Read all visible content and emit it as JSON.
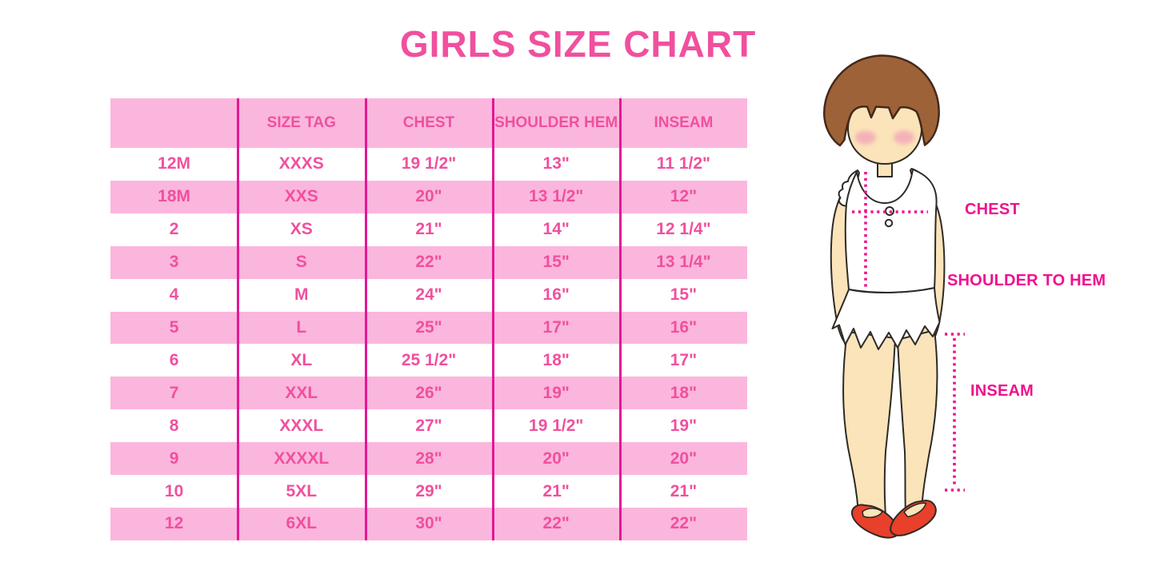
{
  "page": {
    "title": "GIRLS SIZE CHART"
  },
  "colors": {
    "accent_pink": "#F0509E",
    "row_pink": "#FBB6DD",
    "divider_magenta": "#E31795",
    "label_magenta": "#F0108E",
    "hair_brown": "#9E6238",
    "skin": "#FBE4B9",
    "blush": "#F2A6B8",
    "shoe_red": "#E8402A"
  },
  "chart_data": {
    "type": "table",
    "title": "GIRLS SIZE CHART",
    "columns": [
      "",
      "SIZE TAG",
      "CHEST",
      "SHOULDER HEM",
      "INSEAM"
    ],
    "rows": [
      [
        "12M",
        "XXXS",
        "19 1/2\"",
        "13\"",
        "11 1/2\""
      ],
      [
        "18M",
        "XXS",
        "20\"",
        "13 1/2\"",
        "12\""
      ],
      [
        "2",
        "XS",
        "21\"",
        "14\"",
        "12 1/4\""
      ],
      [
        "3",
        "S",
        "22\"",
        "15\"",
        "13 1/4\""
      ],
      [
        "4",
        "M",
        "24\"",
        "16\"",
        "15\""
      ],
      [
        "5",
        "L",
        "25\"",
        "17\"",
        "16\""
      ],
      [
        "6",
        "XL",
        "25 1/2\"",
        "18\"",
        "17\""
      ],
      [
        "7",
        "XXL",
        "26\"",
        "19\"",
        "18\""
      ],
      [
        "8",
        "XXXL",
        "27\"",
        "19 1/2\"",
        "19\""
      ],
      [
        "9",
        "XXXXL",
        "28\"",
        "20\"",
        "20\""
      ],
      [
        "10",
        "5XL",
        "29\"",
        "21\"",
        "21\""
      ],
      [
        "12",
        "6XL",
        "30\"",
        "22\"",
        "22\""
      ]
    ],
    "row_stripe_pattern": "alternating white and pink, starting white",
    "annotations": [
      "CHEST",
      "SHOULDER TO HEM",
      "INSEAM"
    ]
  },
  "figure": {
    "description": "illustration of girl used to indicate measurement points",
    "labels": {
      "chest": "CHEST",
      "shoulder_to_hem": "SHOULDER TO HEM",
      "inseam": "INSEAM"
    }
  }
}
